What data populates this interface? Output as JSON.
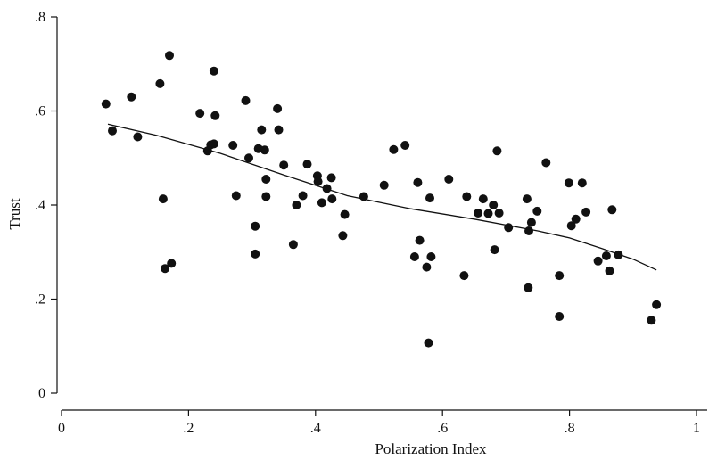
{
  "chart_data": {
    "type": "scatter",
    "xlabel": "Polarization Index",
    "ylabel": "Trust",
    "xlim": [
      0,
      1
    ],
    "ylim": [
      0,
      0.8
    ],
    "x_ticks": [
      0,
      0.2,
      0.4,
      0.6,
      0.8,
      1
    ],
    "x_tick_labels": [
      "0",
      ".2",
      ".4",
      ".6",
      ".8",
      "1"
    ],
    "y_ticks": [
      0,
      0.2,
      0.4,
      0.6,
      0.8
    ],
    "y_tick_labels": [
      "0",
      ".2",
      ".4",
      ".6",
      ".8"
    ],
    "grid": false,
    "points": [
      [
        0.07,
        0.615
      ],
      [
        0.08,
        0.558
      ],
      [
        0.11,
        0.63
      ],
      [
        0.12,
        0.545
      ],
      [
        0.155,
        0.658
      ],
      [
        0.17,
        0.718
      ],
      [
        0.16,
        0.413
      ],
      [
        0.163,
        0.265
      ],
      [
        0.173,
        0.276
      ],
      [
        0.218,
        0.595
      ],
      [
        0.24,
        0.685
      ],
      [
        0.242,
        0.59
      ],
      [
        0.23,
        0.515
      ],
      [
        0.235,
        0.528
      ],
      [
        0.24,
        0.53
      ],
      [
        0.27,
        0.527
      ],
      [
        0.275,
        0.42
      ],
      [
        0.29,
        0.622
      ],
      [
        0.295,
        0.5
      ],
      [
        0.305,
        0.355
      ],
      [
        0.305,
        0.296
      ],
      [
        0.31,
        0.52
      ],
      [
        0.315,
        0.56
      ],
      [
        0.32,
        0.517
      ],
      [
        0.322,
        0.455
      ],
      [
        0.322,
        0.418
      ],
      [
        0.34,
        0.605
      ],
      [
        0.342,
        0.56
      ],
      [
        0.35,
        0.485
      ],
      [
        0.365,
        0.316
      ],
      [
        0.37,
        0.4
      ],
      [
        0.38,
        0.42
      ],
      [
        0.387,
        0.487
      ],
      [
        0.403,
        0.462
      ],
      [
        0.404,
        0.45
      ],
      [
        0.41,
        0.405
      ],
      [
        0.418,
        0.435
      ],
      [
        0.425,
        0.458
      ],
      [
        0.426,
        0.413
      ],
      [
        0.443,
        0.335
      ],
      [
        0.446,
        0.38
      ],
      [
        0.476,
        0.418
      ],
      [
        0.508,
        0.442
      ],
      [
        0.523,
        0.518
      ],
      [
        0.541,
        0.527
      ],
      [
        0.556,
        0.29
      ],
      [
        0.561,
        0.448
      ],
      [
        0.564,
        0.325
      ],
      [
        0.575,
        0.268
      ],
      [
        0.58,
        0.415
      ],
      [
        0.582,
        0.29
      ],
      [
        0.578,
        0.107
      ],
      [
        0.61,
        0.455
      ],
      [
        0.634,
        0.25
      ],
      [
        0.638,
        0.418
      ],
      [
        0.656,
        0.383
      ],
      [
        0.664,
        0.413
      ],
      [
        0.672,
        0.382
      ],
      [
        0.68,
        0.4
      ],
      [
        0.682,
        0.305
      ],
      [
        0.686,
        0.515
      ],
      [
        0.689,
        0.383
      ],
      [
        0.704,
        0.352
      ],
      [
        0.733,
        0.413
      ],
      [
        0.736,
        0.345
      ],
      [
        0.74,
        0.363
      ],
      [
        0.735,
        0.224
      ],
      [
        0.749,
        0.387
      ],
      [
        0.763,
        0.49
      ],
      [
        0.784,
        0.25
      ],
      [
        0.784,
        0.163
      ],
      [
        0.799,
        0.447
      ],
      [
        0.803,
        0.356
      ],
      [
        0.81,
        0.37
      ],
      [
        0.82,
        0.447
      ],
      [
        0.826,
        0.385
      ],
      [
        0.845,
        0.281
      ],
      [
        0.858,
        0.292
      ],
      [
        0.863,
        0.26
      ],
      [
        0.867,
        0.39
      ],
      [
        0.877,
        0.294
      ],
      [
        0.929,
        0.155
      ],
      [
        0.937,
        0.188
      ]
    ],
    "fit_line": [
      [
        0.073,
        0.572
      ],
      [
        0.15,
        0.548
      ],
      [
        0.25,
        0.51
      ],
      [
        0.35,
        0.464
      ],
      [
        0.45,
        0.42
      ],
      [
        0.55,
        0.392
      ],
      [
        0.65,
        0.37
      ],
      [
        0.75,
        0.345
      ],
      [
        0.8,
        0.33
      ],
      [
        0.85,
        0.308
      ],
      [
        0.9,
        0.285
      ],
      [
        0.937,
        0.262
      ]
    ]
  }
}
